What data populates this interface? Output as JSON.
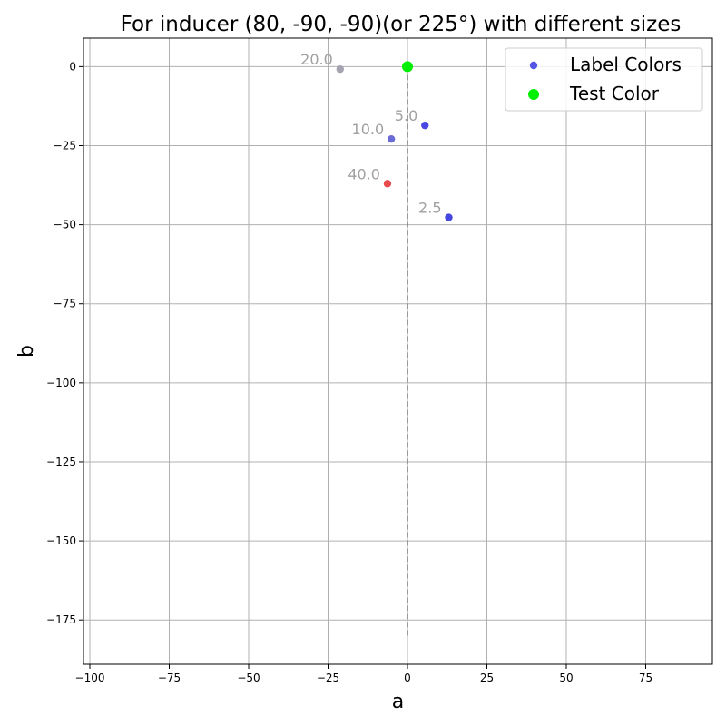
{
  "chart_data": {
    "type": "scatter",
    "title": "For inducer (80, -90, -90)(or 225°) with different sizes",
    "xlabel": "a",
    "ylabel": "b",
    "xlim": [
      -102,
      96
    ],
    "ylim": [
      -189,
      9
    ],
    "xticks": [
      -100,
      -75,
      -50,
      -25,
      0,
      25,
      50,
      75
    ],
    "yticks": [
      0,
      -25,
      -50,
      -75,
      -100,
      -125,
      -150,
      -175
    ],
    "xtick_labels": [
      "−100",
      "−75",
      "−50",
      "−25",
      "0",
      "25",
      "50",
      "75"
    ],
    "ytick_labels": [
      "0",
      "−25",
      "−50",
      "−75",
      "−100",
      "−125",
      "−150",
      "−175"
    ],
    "grid": true,
    "legend_position": "top-right",
    "series": [
      {
        "name": "Label Colors",
        "legend_color": "#5555e8",
        "points": [
          {
            "x": -21.2,
            "y": -0.8,
            "label": "20.0",
            "color": "#a6a3b0"
          },
          {
            "x": 5.5,
            "y": -18.6,
            "label": "5.0",
            "color": "#4a47e2"
          },
          {
            "x": -5.1,
            "y": -22.9,
            "label": "10.0",
            "color": "#6b6bd6"
          },
          {
            "x": -6.3,
            "y": -37.0,
            "label": "40.0",
            "color": "#e84b4b"
          },
          {
            "x": 13.0,
            "y": -47.7,
            "label": "2.5",
            "color": "#4646e0"
          }
        ]
      },
      {
        "name": "Test Color",
        "legend_color": "#00ee00",
        "points": [
          {
            "x": 0,
            "y": 0,
            "color": "#00ee00"
          }
        ]
      }
    ],
    "reference_line": {
      "x": 0,
      "y_from": 0,
      "y_to": -180,
      "style": "dashed",
      "color": "#808080"
    }
  }
}
